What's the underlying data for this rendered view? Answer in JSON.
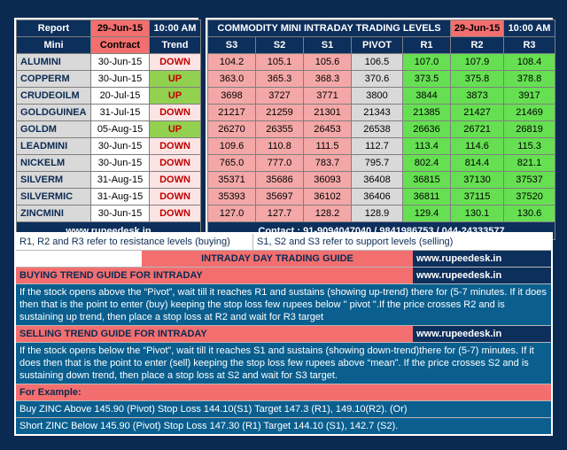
{
  "left_table": {
    "title": "Report",
    "date": "29-Jun-15",
    "time": "10:00 AM",
    "col_mini": "Mini",
    "col_contract": "Contract",
    "col_trend": "Trend",
    "footer": "www.rupeedesk.in"
  },
  "right_table": {
    "title": "COMMODITY MINI INTRADAY TRADING LEVELS",
    "date": "29-Jun-15",
    "time": "10:00 AM",
    "cols": [
      "S3",
      "S2",
      "S1",
      "PIVOT",
      "R1",
      "R2",
      "R3"
    ],
    "footer": "Contact : 91-9094047040 / 9841986753 / 044-24333577"
  },
  "rows": [
    {
      "mini": "ALUMINI",
      "contract": "30-Jun-15",
      "trend": "DOWN",
      "s3": "104.2",
      "s2": "105.1",
      "s1": "105.6",
      "pivot": "106.5",
      "r1": "107.0",
      "r2": "107.9",
      "r3": "108.4"
    },
    {
      "mini": "COPPERM",
      "contract": "30-Jun-15",
      "trend": "UP",
      "s3": "363.0",
      "s2": "365.3",
      "s1": "368.3",
      "pivot": "370.6",
      "r1": "373.5",
      "r2": "375.8",
      "r3": "378.8"
    },
    {
      "mini": "CRUDEOILM",
      "contract": "20-Jul-15",
      "trend": "UP",
      "s3": "3698",
      "s2": "3727",
      "s1": "3771",
      "pivot": "3800",
      "r1": "3844",
      "r2": "3873",
      "r3": "3917"
    },
    {
      "mini": "GOLDGUINEA",
      "contract": "31-Jul-15",
      "trend": "DOWN",
      "s3": "21217",
      "s2": "21259",
      "s1": "21301",
      "pivot": "21343",
      "r1": "21385",
      "r2": "21427",
      "r3": "21469"
    },
    {
      "mini": "GOLDM",
      "contract": "05-Aug-15",
      "trend": "UP",
      "s3": "26270",
      "s2": "26355",
      "s1": "26453",
      "pivot": "26538",
      "r1": "26636",
      "r2": "26721",
      "r3": "26819"
    },
    {
      "mini": "LEADMINI",
      "contract": "30-Jun-15",
      "trend": "DOWN",
      "s3": "109.6",
      "s2": "110.8",
      "s1": "111.5",
      "pivot": "112.7",
      "r1": "113.4",
      "r2": "114.6",
      "r3": "115.3"
    },
    {
      "mini": "NICKELM",
      "contract": "30-Jun-15",
      "trend": "DOWN",
      "s3": "765.0",
      "s2": "777.0",
      "s1": "783.7",
      "pivot": "795.7",
      "r1": "802.4",
      "r2": "814.4",
      "r3": "821.1"
    },
    {
      "mini": "SILVERM",
      "contract": "31-Aug-15",
      "trend": "DOWN",
      "s3": "35371",
      "s2": "35686",
      "s1": "36093",
      "pivot": "36408",
      "r1": "36815",
      "r2": "37130",
      "r3": "37537"
    },
    {
      "mini": "SILVERMIC",
      "contract": "31-Aug-15",
      "trend": "DOWN",
      "s3": "35393",
      "s2": "35697",
      "s1": "36102",
      "pivot": "36406",
      "r1": "36811",
      "r2": "37115",
      "r3": "37520"
    },
    {
      "mini": "ZINCMINI",
      "contract": "30-Jun-15",
      "trend": "DOWN",
      "s3": "127.0",
      "s2": "127.7",
      "s1": "128.2",
      "pivot": "128.9",
      "r1": "129.4",
      "r2": "130.1",
      "r3": "130.6"
    }
  ],
  "guide": {
    "note_left": "R1, R2 and R3 refer to resistance levels (buying)",
    "note_right": "S1, S2 and S3 refer to support levels (selling)",
    "title": "INTRADAY DAY TRADING GUIDE",
    "site": "www.rupeedesk.in",
    "buy_heading": "BUYING TREND GUIDE FOR INTRADAY",
    "buy_site": "www.rupeedesk.in",
    "buy_text": "If the stock opens above the “Pivot”, wait till it reaches R1 and sustains (showing up-trend) there for (5-7 minutes. If it does then that is the point to enter (buy) keeping the stop loss few rupees below \" pivot \".If the price crosses R2 and is sustaining up trend, then place a stop loss at R2 and wait for R3 target",
    "sell_heading": "SELLING TREND GUIDE FOR INTRADAY",
    "sell_site": "www.rupeedesk.in",
    "sell_text": "If the stock opens below the “Pivot”, wait till it reaches S1 and sustains (showing down-trend)there for (5-7) minutes. If it does then that is the point to enter (sell) keeping the stop loss few rupees above “mean”.  If the price crosses S2 and is sustaining down trend, then place a stop loss at S2 and wait for S3 target.",
    "example_heading": "For Example:",
    "example_1": "Buy ZINC Above 145.90 (Pivot) Stop Loss 144.10(S1) Target 147.3 (R1), 149.10(R2). (Or)",
    "example_2": "Short ZINC Below 145.90 (Pivot) Stop Loss 147.30 (R1) Target 144.10 (S1), 142.7 (S2)."
  },
  "colors": {
    "background": "#0b2a52",
    "header_red": "#f36f6f",
    "up_green": "#92d050",
    "resistance_green": "#66e052",
    "support_pink": "#f4a7a7"
  }
}
